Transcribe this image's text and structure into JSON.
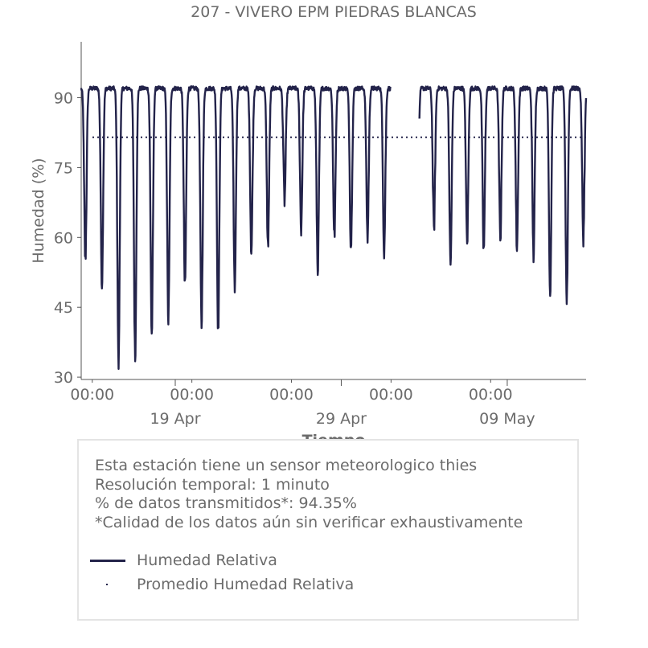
{
  "chart_data": {
    "type": "line",
    "title": "207 - VIVERO EPM PIEDRAS BLANCAS",
    "xlabel": "Tiempo",
    "ylabel": "Humedad (%)",
    "x_range": [
      "2025-04-13T08:00",
      "2025-05-13T18:00"
    ],
    "ylim": [
      29.5,
      102
    ],
    "yticks": [
      30,
      45,
      60,
      75,
      90
    ],
    "xticks_minor": [
      {
        "x": "2025-04-14T00:00",
        "label": "00:00"
      },
      {
        "x": "2025-04-20T00:00",
        "label": "00:00"
      },
      {
        "x": "2025-04-26T00:00",
        "label": "00:00"
      },
      {
        "x": "2025-05-02T00:00",
        "label": "00:00"
      },
      {
        "x": "2025-05-08T00:00",
        "label": "00:00"
      }
    ],
    "xticks_major": [
      {
        "x": "2025-04-19T00:00",
        "label": "19 Apr"
      },
      {
        "x": "2025-04-29T00:00",
        "label": "29 Apr"
      },
      {
        "x": "2025-05-09T00:00",
        "label": "09 May"
      }
    ],
    "grid": false,
    "series": [
      {
        "name": "Humedad Relativa",
        "color": "#23234a",
        "style": "solid",
        "daily_minimum": [
          {
            "date": "2025-04-13",
            "min": 55
          },
          {
            "date": "2025-04-14",
            "min": 50
          },
          {
            "date": "2025-04-15",
            "min": 32.5
          },
          {
            "date": "2025-04-16",
            "min": 34
          },
          {
            "date": "2025-04-17",
            "min": 39
          },
          {
            "date": "2025-04-18",
            "min": 42
          },
          {
            "date": "2025-04-19",
            "min": 49
          },
          {
            "date": "2025-04-20",
            "min": 41
          },
          {
            "date": "2025-04-21",
            "min": 40
          },
          {
            "date": "2025-04-22",
            "min": 49
          },
          {
            "date": "2025-04-23",
            "min": 57
          },
          {
            "date": "2025-04-24",
            "min": 58
          },
          {
            "date": "2025-04-25",
            "min": 68
          },
          {
            "date": "2025-04-26",
            "min": 62
          },
          {
            "date": "2025-04-27",
            "min": 53
          },
          {
            "date": "2025-04-28",
            "min": 60
          },
          {
            "date": "2025-04-29",
            "min": 58
          },
          {
            "date": "2025-04-30",
            "min": 60
          },
          {
            "date": "2025-05-01",
            "min": 57
          },
          {
            "date": "2025-05-04",
            "min": 62
          },
          {
            "date": "2025-05-05",
            "min": 54
          },
          {
            "date": "2025-05-06",
            "min": 59
          },
          {
            "date": "2025-05-07",
            "min": 57
          },
          {
            "date": "2025-05-08",
            "min": 60
          },
          {
            "date": "2025-05-09",
            "min": 58
          },
          {
            "date": "2025-05-10",
            "min": 56
          },
          {
            "date": "2025-05-11",
            "min": 48
          },
          {
            "date": "2025-05-12",
            "min": 46.5
          }
        ],
        "daily_maximum": 92,
        "gap": [
          "2025-05-01T23:00",
          "2025-05-03T17:00"
        ]
      },
      {
        "name": "Promedio Humedad Relativa",
        "color": "#23234a",
        "style": "dotted",
        "value": 81.5
      }
    ]
  },
  "info": {
    "lines": [
      "Esta estación tiene un sensor meteorologico thies",
      "Resolución temporal: 1 minuto",
      "% de datos transmitidos*: 94.35%",
      "*Calidad de los datos aún sin verificar exhaustivamente"
    ]
  }
}
